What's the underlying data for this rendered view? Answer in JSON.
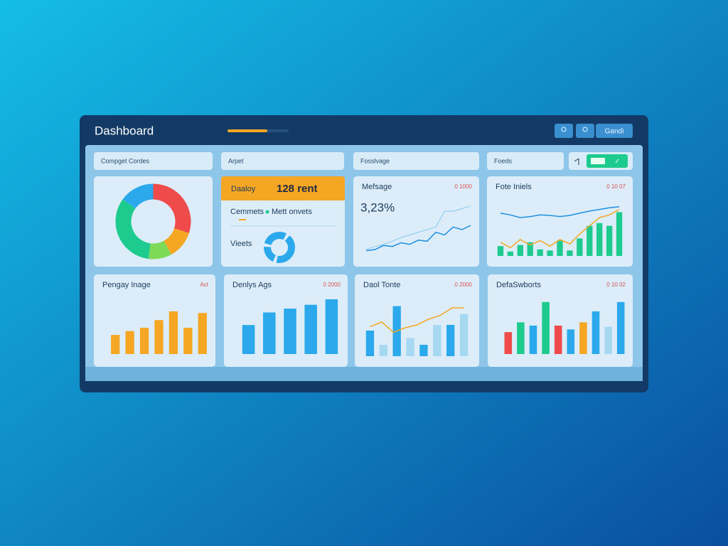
{
  "header": {
    "title": "Dashboard",
    "action": "Gandi"
  },
  "filters": [
    "Compget Cordes",
    "Arpet",
    "Fosslvage",
    "Foeds"
  ],
  "cards": [
    {
      "type": "donut",
      "segments": [
        {
          "color": "#ef4b4b",
          "value": 30
        },
        {
          "color": "#f5a623",
          "value": 12
        },
        {
          "color": "#7ed957",
          "value": 10
        },
        {
          "color": "#1ecb8e",
          "value": 33
        },
        {
          "color": "#2ba9ec",
          "value": 15
        }
      ]
    },
    {
      "type": "kpi",
      "header": "Daaloy",
      "value": "128 rent",
      "legend": [
        "Cemmets",
        "Mett onvets"
      ],
      "label": "Vieets"
    },
    {
      "type": "line",
      "title": "Mefsage",
      "value": "3,23%",
      "badge": "0 1000",
      "ylim": [
        0,
        100
      ],
      "series": [
        {
          "color": "#9fd3f0",
          "values": [
            12,
            18,
            22,
            28,
            35,
            40,
            45,
            50,
            55,
            85,
            85,
            90,
            95
          ]
        },
        {
          "color": "#1e8fe0",
          "values": [
            10,
            12,
            20,
            18,
            25,
            22,
            30,
            28,
            45,
            40,
            55,
            50,
            58
          ]
        }
      ]
    },
    {
      "type": "combo",
      "title": "Fote Iniels",
      "badge": "0 10 07",
      "ylim": [
        0,
        100
      ],
      "bars": {
        "color": "#1ecb8e",
        "values": [
          18,
          8,
          20,
          25,
          12,
          10,
          28,
          10,
          32,
          55,
          60,
          55,
          80
        ]
      },
      "series": [
        {
          "color": "#1e8fe0",
          "values": [
            78,
            75,
            70,
            72,
            75,
            74,
            72,
            74,
            78,
            82,
            85,
            88,
            90
          ]
        },
        {
          "color": "#f5a623",
          "values": [
            25,
            15,
            30,
            20,
            28,
            18,
            30,
            22,
            40,
            55,
            70,
            75,
            85
          ]
        }
      ]
    },
    {
      "type": "bar",
      "title": "Pengay Inage",
      "badge": "Act",
      "ylim": [
        0,
        100
      ],
      "colors": [
        "#f5a623"
      ],
      "values": [
        35,
        42,
        48,
        62,
        78,
        48,
        75
      ]
    },
    {
      "type": "bar",
      "title": "Denlys Ags",
      "badge": "0 2000",
      "ylim": [
        0,
        100
      ],
      "colors": [
        "#2ba9ec"
      ],
      "values": [
        53,
        76,
        83,
        90,
        100
      ]
    },
    {
      "type": "combo",
      "title": "Daol Tonte",
      "badge": "0 2000",
      "ylim": [
        0,
        100
      ],
      "bars": {
        "colors": [
          "#2ba9ec",
          "#a6d8f2"
        ],
        "values": [
          45,
          20,
          88,
          32,
          20,
          55,
          55,
          74
        ]
      },
      "series": [
        {
          "color": "#f5a623",
          "values": [
            52,
            60,
            42,
            50,
            55,
            65,
            72,
            85,
            85
          ]
        }
      ]
    },
    {
      "type": "bar",
      "title": "DefaSwborts",
      "badge": "0 10 02",
      "ylim": [
        0,
        100
      ],
      "colors": [
        "#ef4b4b",
        "#1ecb8e",
        "#2ba9ec",
        "#1ecb8e",
        "#ef4b4b",
        "#2ba9ec",
        "#f5a623",
        "#2ba9ec",
        "#a6d8f2",
        "#2ba9ec"
      ],
      "values": [
        40,
        58,
        52,
        95,
        52,
        45,
        58,
        78,
        50,
        95
      ]
    }
  ]
}
